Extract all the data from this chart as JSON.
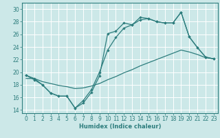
{
  "xlabel": "Humidex (Indice chaleur)",
  "bg_color": "#cce8e8",
  "line_color": "#2d7d7d",
  "grid_color": "#ffffff",
  "xlim": [
    -0.5,
    23.5
  ],
  "ylim": [
    13.5,
    31
  ],
  "xticks": [
    0,
    1,
    2,
    3,
    4,
    5,
    6,
    7,
    8,
    9,
    10,
    11,
    12,
    13,
    14,
    15,
    16,
    17,
    18,
    19,
    20,
    21,
    22,
    23
  ],
  "yticks": [
    14,
    16,
    18,
    20,
    22,
    24,
    26,
    28,
    30
  ],
  "line1_x": [
    0,
    1,
    2,
    3,
    4,
    5,
    6,
    7,
    8,
    9,
    10,
    11,
    12,
    13,
    14,
    15,
    16,
    17,
    18,
    19,
    20,
    21,
    22,
    23
  ],
  "line1_y": [
    19.5,
    19.0,
    18.0,
    16.7,
    16.2,
    16.2,
    14.3,
    15.1,
    16.8,
    19.4,
    26.1,
    26.5,
    27.8,
    27.5,
    28.7,
    28.5,
    28.0,
    27.8,
    27.8,
    29.5,
    25.6,
    23.9,
    22.4,
    22.1
  ],
  "line2_x": [
    0,
    1,
    2,
    3,
    4,
    5,
    6,
    7,
    8,
    9,
    10,
    11,
    12,
    13,
    14,
    15,
    16,
    17,
    18,
    19,
    20,
    21,
    22,
    23
  ],
  "line2_y": [
    19.0,
    19.0,
    18.5,
    18.2,
    17.9,
    17.7,
    17.4,
    17.5,
    17.8,
    18.2,
    18.8,
    19.3,
    19.9,
    20.4,
    21.0,
    21.5,
    22.0,
    22.5,
    23.0,
    23.5,
    23.2,
    22.8,
    22.3,
    22.1
  ],
  "line3_x": [
    0,
    1,
    2,
    3,
    4,
    5,
    6,
    7,
    8,
    9,
    10,
    11,
    12,
    13,
    14,
    15,
    16,
    17,
    18,
    19,
    20,
    21,
    22,
    23
  ],
  "line3_y": [
    19.5,
    18.8,
    18.0,
    16.7,
    16.2,
    16.2,
    14.3,
    15.5,
    17.2,
    20.0,
    23.5,
    25.5,
    27.0,
    27.5,
    28.3,
    28.5,
    28.0,
    27.8,
    27.8,
    29.5,
    25.6,
    23.9,
    22.4,
    22.1
  ],
  "xlabel_fontsize": 6,
  "tick_fontsize": 5.5,
  "lw": 0.9,
  "marker_size": 2.2
}
